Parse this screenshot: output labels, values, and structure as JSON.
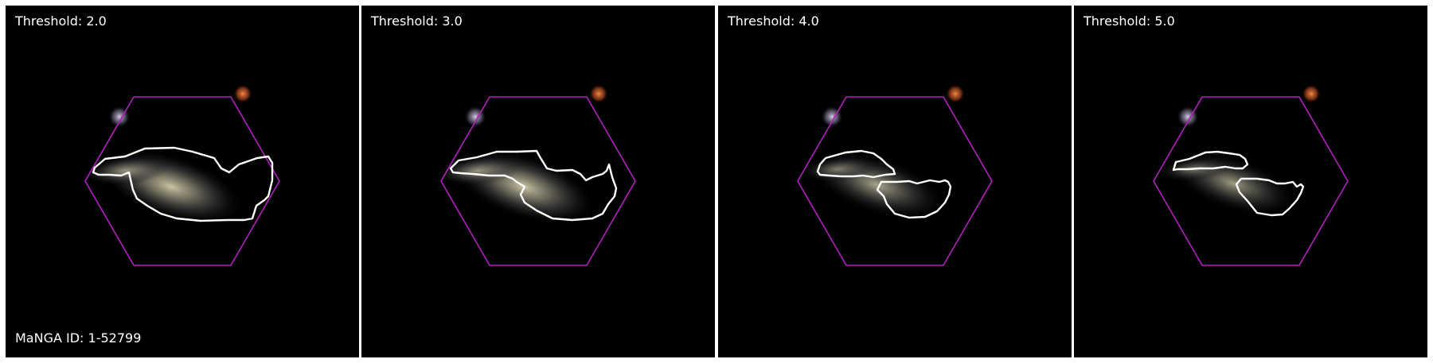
{
  "panels": [
    {
      "threshold_label": "Threshold: 2.0"
    },
    {
      "threshold_label": "Threshold: 3.0"
    },
    {
      "threshold_label": "Threshold: 4.0"
    },
    {
      "threshold_label": "Threshold: 5.0"
    }
  ],
  "galaxy_id_label": "MaNGA ID: 1-52799",
  "colors": {
    "background": "#000000",
    "hexagon": "#b21fc0",
    "contour": "#ffffff",
    "galaxy_core": "#cfc7a6",
    "red_star": "#d0582a",
    "blue_star": "#b8a9c9"
  }
}
